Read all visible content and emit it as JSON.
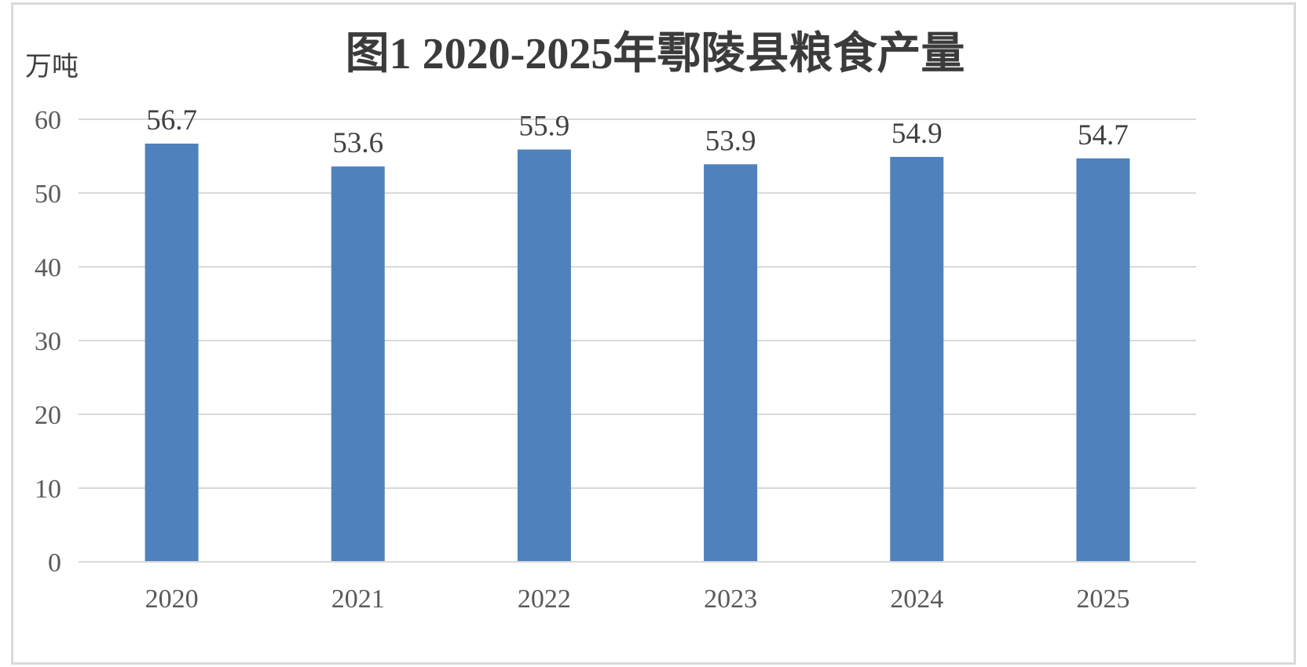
{
  "chart_data": {
    "type": "bar",
    "title": "图1 2020-2025年鄠陵县粮食产量",
    "ylabel": "万吨",
    "xlabel": "",
    "categories": [
      "2020",
      "2021",
      "2022",
      "2023",
      "2024",
      "2025"
    ],
    "values": [
      56.7,
      53.6,
      55.9,
      53.9,
      54.9,
      54.7
    ],
    "data_labels": [
      "56.7",
      "53.6",
      "55.9",
      "53.9",
      "54.9",
      "54.7"
    ],
    "ylim": [
      0,
      60
    ],
    "yticks": [
      "0",
      "10",
      "20",
      "30",
      "40",
      "50",
      "60"
    ],
    "grid": true,
    "legend": "none",
    "colors": {
      "bar": "#4f81bd",
      "grid": "#d9d9d9",
      "axis": "#d9d9d9",
      "frame": "#d9d9d9"
    }
  }
}
